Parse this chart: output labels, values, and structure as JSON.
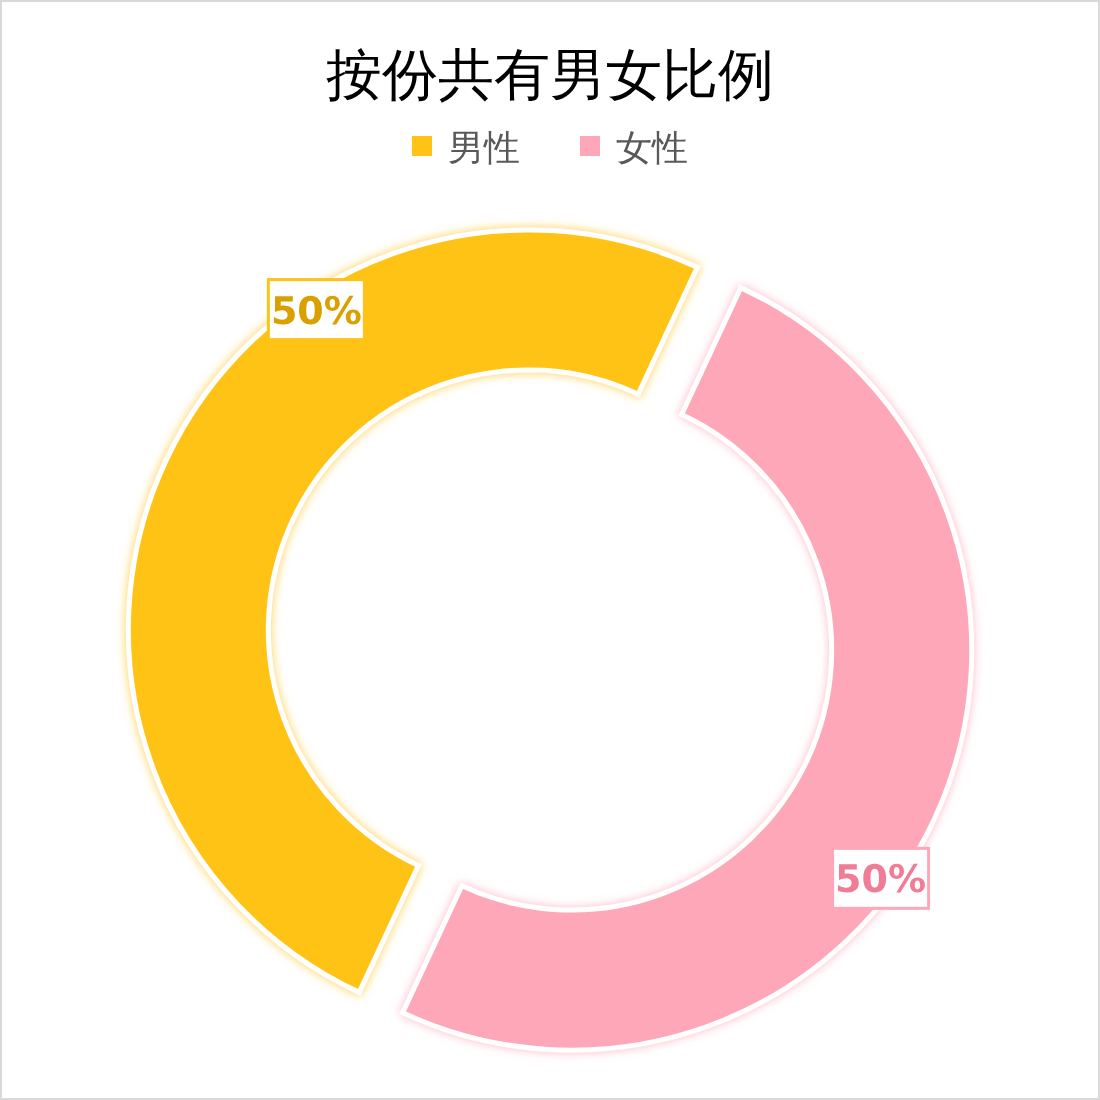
{
  "chart_data": {
    "type": "donut",
    "title": "按份共有男女比例",
    "categories": [
      "男性",
      "女性"
    ],
    "values": [
      50,
      50
    ],
    "colors": [
      "#ffc316",
      "#fda7b9"
    ],
    "value_labels": [
      "50%",
      "50%"
    ],
    "legend": "top"
  }
}
